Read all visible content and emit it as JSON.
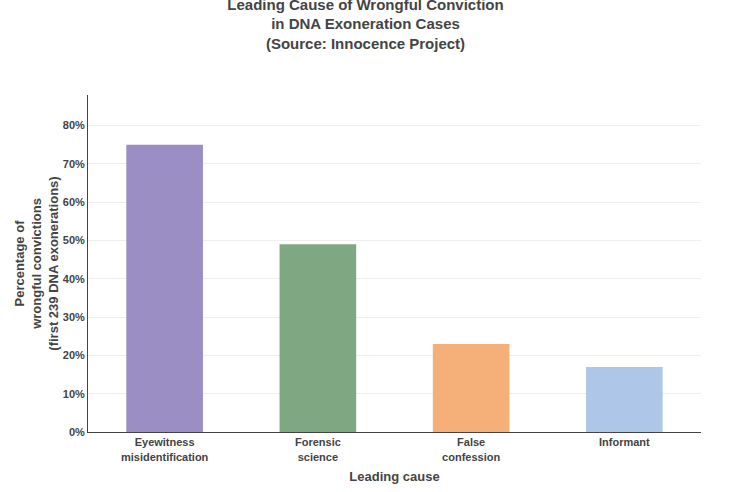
{
  "chart_data": {
    "type": "bar",
    "title": "Leading Cause of Wrongful Conviction\nin DNA Exoneration Cases\n(Source: Innocence Project)",
    "xlabel": "Leading cause",
    "ylabel": "Percentage of\nwrongful convictions\n(first 239 DNA exonerations)",
    "categories": [
      "Eyewitness\nmisidentification",
      "Forensic\nscience",
      "False\nconfession",
      "Informant"
    ],
    "values": [
      75,
      49,
      23,
      17
    ],
    "colors": [
      "#9b8ec4",
      "#7fa882",
      "#f5b07a",
      "#aec6e8"
    ],
    "ylim": [
      0,
      88
    ],
    "yticks": [
      {
        "value": 0,
        "label": "0%"
      },
      {
        "value": 10,
        "label": "10%"
      },
      {
        "value": 20,
        "label": "20%"
      },
      {
        "value": 30,
        "label": "30%"
      },
      {
        "value": 40,
        "label": "40%"
      },
      {
        "value": 50,
        "label": "50%"
      },
      {
        "value": 60,
        "label": "60%"
      },
      {
        "value": 70,
        "label": "70%"
      },
      {
        "value": 80,
        "label": "80%"
      }
    ],
    "grid": true
  }
}
